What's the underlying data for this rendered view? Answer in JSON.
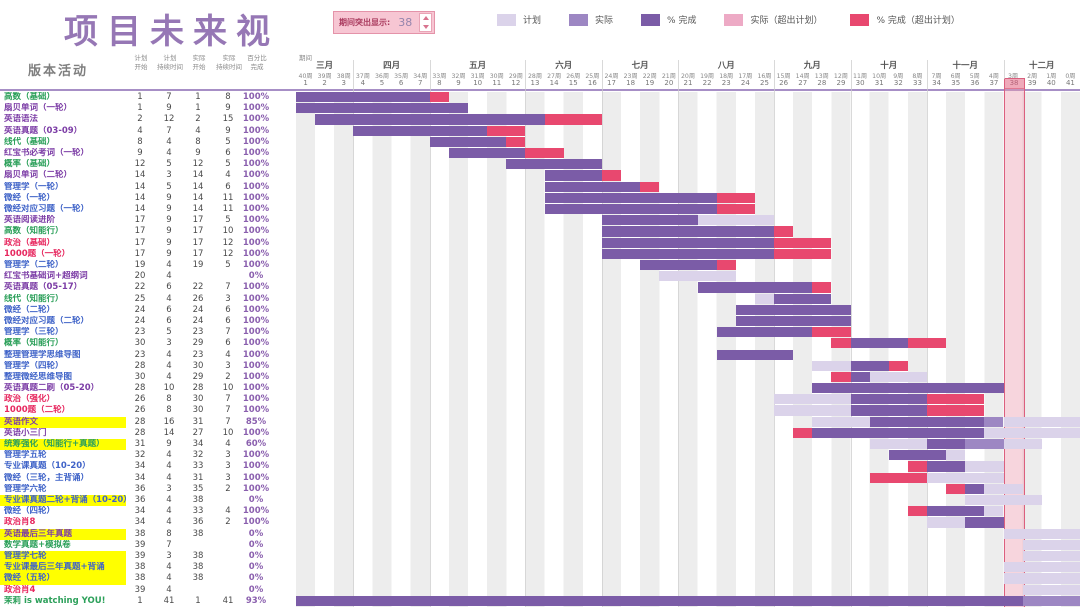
{
  "title": "项目未来视",
  "controls": {
    "highlight_label": "期间突出显示:",
    "highlight_value": "38"
  },
  "legend": [
    {
      "label": "计划",
      "type": "plan"
    },
    {
      "label": "实际",
      "type": "actual"
    },
    {
      "label": "% 完成",
      "type": "complete"
    },
    {
      "label": "实际（超出计划）",
      "type": "overActual"
    },
    {
      "label": "% 完成（超出计划）",
      "type": "overComplete"
    }
  ],
  "table": {
    "activity_header": "版本活动",
    "period_label": "期间",
    "col_headers": [
      [
        "计划",
        "开始"
      ],
      [
        "计划",
        "持续时间"
      ],
      [
        "实际",
        "开始"
      ],
      [
        "实际",
        "持续时间"
      ],
      [
        "百分比",
        "完成"
      ]
    ]
  },
  "timeline": {
    "months": [
      [
        "三月",
        3
      ],
      [
        "四月",
        4
      ],
      [
        "五月",
        5
      ],
      [
        "六月",
        4
      ],
      [
        "七月",
        4
      ],
      [
        "八月",
        5
      ],
      [
        "九月",
        4
      ],
      [
        "十月",
        4
      ],
      [
        "十一月",
        4
      ],
      [
        "十二月",
        4
      ]
    ],
    "week_labels": [
      "40周",
      "39周",
      "38周",
      "37周",
      "36周",
      "35周",
      "34周",
      "33周",
      "32周",
      "31周",
      "30周",
      "29周",
      "28周",
      "27周",
      "26周",
      "25周",
      "24周",
      "23周",
      "22周",
      "21周",
      "20周",
      "19周",
      "18周",
      "17周",
      "16周",
      "15周",
      "14周",
      "13周",
      "12周",
      "11周",
      "10周",
      "9周",
      "8周",
      "7周",
      "6周",
      "5周",
      "4周",
      "3周",
      "2周",
      "1周",
      "0周"
    ],
    "week_numbers": [
      1,
      2,
      3,
      4,
      5,
      6,
      7,
      8,
      9,
      10,
      11,
      12,
      13,
      14,
      15,
      16,
      17,
      18,
      19,
      20,
      21,
      22,
      23,
      24,
      25,
      26,
      27,
      28,
      29,
      30,
      31,
      32,
      33,
      34,
      35,
      36,
      37,
      38,
      39,
      40,
      41
    ],
    "highlight_week": 38,
    "total_weeks": 41
  },
  "colors": {
    "green": "#2ca05a",
    "purple": "#7c3da6",
    "blue": "#3f63c8",
    "red": "#e7285f",
    "plan": "#dbd3ea",
    "actual": "#9d87c3",
    "complete": "#7b5ca7",
    "overActual": "#edaac5",
    "overComplete": "#e8486f",
    "title": "#9677b5",
    "highlight_fill": "#f2b3c3",
    "highlight_border": "#dc5f7e"
  },
  "rows": [
    {
      "name": "高数（基础）",
      "color": "green",
      "highlight": false,
      "plan_start": "1",
      "plan_dur": "7",
      "actual_start": "1",
      "actual_dur": "8",
      "pct": "100%"
    },
    {
      "name": "扇贝单词（一轮）",
      "color": "purple",
      "highlight": false,
      "plan_start": "1",
      "plan_dur": "9",
      "actual_start": "1",
      "actual_dur": "9",
      "pct": "100%"
    },
    {
      "name": "英语语法",
      "color": "purple",
      "highlight": false,
      "plan_start": "2",
      "plan_dur": "12",
      "actual_start": "2",
      "actual_dur": "15",
      "pct": "100%"
    },
    {
      "name": "英语真题（03-09）",
      "color": "purple",
      "highlight": false,
      "plan_start": "4",
      "plan_dur": "7",
      "actual_start": "4",
      "actual_dur": "9",
      "pct": "100%"
    },
    {
      "name": "线代（基础）",
      "color": "green",
      "highlight": false,
      "plan_start": "8",
      "plan_dur": "4",
      "actual_start": "8",
      "actual_dur": "5",
      "pct": "100%"
    },
    {
      "name": "红宝书必考词（一轮）",
      "color": "purple",
      "highlight": false,
      "plan_start": "9",
      "plan_dur": "4",
      "actual_start": "9",
      "actual_dur": "6",
      "pct": "100%"
    },
    {
      "name": "概率（基础）",
      "color": "green",
      "highlight": false,
      "plan_start": "12",
      "plan_dur": "5",
      "actual_start": "12",
      "actual_dur": "5",
      "pct": "100%"
    },
    {
      "name": "扇贝单词（二轮）",
      "color": "purple",
      "highlight": false,
      "plan_start": "14",
      "plan_dur": "3",
      "actual_start": "14",
      "actual_dur": "4",
      "pct": "100%"
    },
    {
      "name": "管理学（一轮）",
      "color": "blue",
      "highlight": false,
      "plan_start": "14",
      "plan_dur": "5",
      "actual_start": "14",
      "actual_dur": "6",
      "pct": "100%"
    },
    {
      "name": "微经（一轮）",
      "color": "blue",
      "highlight": false,
      "plan_start": "14",
      "plan_dur": "9",
      "actual_start": "14",
      "actual_dur": "11",
      "pct": "100%"
    },
    {
      "name": "微经对应习题（一轮）",
      "color": "blue",
      "highlight": false,
      "plan_start": "14",
      "plan_dur": "9",
      "actual_start": "14",
      "actual_dur": "11",
      "pct": "100%"
    },
    {
      "name": "英语阅读进阶",
      "color": "purple",
      "highlight": false,
      "plan_start": "17",
      "plan_dur": "9",
      "actual_start": "17",
      "actual_dur": "5",
      "pct": "100%"
    },
    {
      "name": "高数（知能行）",
      "color": "green",
      "highlight": false,
      "plan_start": "17",
      "plan_dur": "9",
      "actual_start": "17",
      "actual_dur": "10",
      "pct": "100%"
    },
    {
      "name": "政治（基础）",
      "color": "red",
      "highlight": false,
      "plan_start": "17",
      "plan_dur": "9",
      "actual_start": "17",
      "actual_dur": "12",
      "pct": "100%"
    },
    {
      "name": "1000题（一轮）",
      "color": "red",
      "highlight": false,
      "plan_start": "17",
      "plan_dur": "9",
      "actual_start": "17",
      "actual_dur": "12",
      "pct": "100%"
    },
    {
      "name": "管理学（二轮）",
      "color": "blue",
      "highlight": false,
      "plan_start": "19",
      "plan_dur": "4",
      "actual_start": "19",
      "actual_dur": "5",
      "pct": "100%"
    },
    {
      "name": "红宝书基础词+超纲词",
      "color": "purple",
      "highlight": false,
      "plan_start": "20",
      "plan_dur": "4",
      "actual_start": "",
      "actual_dur": "",
      "pct": "0%"
    },
    {
      "name": "英语真题（05-17）",
      "color": "purple",
      "highlight": false,
      "plan_start": "22",
      "plan_dur": "6",
      "actual_start": "22",
      "actual_dur": "7",
      "pct": "100%"
    },
    {
      "name": "线代（知能行）",
      "color": "green",
      "highlight": false,
      "plan_start": "25",
      "plan_dur": "4",
      "actual_start": "26",
      "actual_dur": "3",
      "pct": "100%"
    },
    {
      "name": "微经（二轮）",
      "color": "blue",
      "highlight": false,
      "plan_start": "24",
      "plan_dur": "6",
      "actual_start": "24",
      "actual_dur": "6",
      "pct": "100%"
    },
    {
      "name": "微经对应习题（二轮）",
      "color": "blue",
      "highlight": false,
      "plan_start": "24",
      "plan_dur": "6",
      "actual_start": "24",
      "actual_dur": "6",
      "pct": "100%"
    },
    {
      "name": "管理学（三轮）",
      "color": "blue",
      "highlight": false,
      "plan_start": "23",
      "plan_dur": "5",
      "actual_start": "23",
      "actual_dur": "7",
      "pct": "100%"
    },
    {
      "name": "概率（知能行）",
      "color": "green",
      "highlight": false,
      "plan_start": "30",
      "plan_dur": "3",
      "actual_start": "29",
      "actual_dur": "6",
      "pct": "100%"
    },
    {
      "name": "整理管理学思维导图",
      "color": "blue",
      "highlight": false,
      "plan_start": "23",
      "plan_dur": "4",
      "actual_start": "23",
      "actual_dur": "4",
      "pct": "100%"
    },
    {
      "name": "管理学（四轮）",
      "color": "blue",
      "highlight": false,
      "plan_start": "28",
      "plan_dur": "4",
      "actual_start": "30",
      "actual_dur": "3",
      "pct": "100%"
    },
    {
      "name": "整理微经思维导图",
      "color": "blue",
      "highlight": false,
      "plan_start": "30",
      "plan_dur": "4",
      "actual_start": "29",
      "actual_dur": "2",
      "pct": "100%"
    },
    {
      "name": "英语真题二刷（05-20）",
      "color": "purple",
      "highlight": false,
      "plan_start": "28",
      "plan_dur": "10",
      "actual_start": "28",
      "actual_dur": "10",
      "pct": "100%"
    },
    {
      "name": "政治（强化）",
      "color": "red",
      "highlight": false,
      "plan_start": "26",
      "plan_dur": "8",
      "actual_start": "30",
      "actual_dur": "7",
      "pct": "100%"
    },
    {
      "name": "1000题（二轮）",
      "color": "red",
      "highlight": false,
      "plan_start": "26",
      "plan_dur": "8",
      "actual_start": "30",
      "actual_dur": "7",
      "pct": "100%"
    },
    {
      "name": "英语作文",
      "color": "purple",
      "highlight": true,
      "plan_start": "28",
      "plan_dur": "16",
      "actual_start": "31",
      "actual_dur": "7",
      "pct": "85%"
    },
    {
      "name": "英语小三门",
      "color": "purple",
      "highlight": false,
      "plan_start": "28",
      "plan_dur": "14",
      "actual_start": "27",
      "actual_dur": "10",
      "pct": "100%"
    },
    {
      "name": "统筹强化（知能行+真题）",
      "color": "green",
      "highlight": true,
      "plan_start": "31",
      "plan_dur": "9",
      "actual_start": "34",
      "actual_dur": "4",
      "pct": "60%"
    },
    {
      "name": "管理学五轮",
      "color": "blue",
      "highlight": false,
      "plan_start": "32",
      "plan_dur": "4",
      "actual_start": "32",
      "actual_dur": "3",
      "pct": "100%"
    },
    {
      "name": "专业课真题（10-20）",
      "color": "blue",
      "highlight": false,
      "plan_start": "34",
      "plan_dur": "4",
      "actual_start": "33",
      "actual_dur": "3",
      "pct": "100%"
    },
    {
      "name": "微经（三轮，主背诵）",
      "color": "blue",
      "highlight": false,
      "plan_start": "34",
      "plan_dur": "4",
      "actual_start": "31",
      "actual_dur": "3",
      "pct": "100%"
    },
    {
      "name": "管理学六轮",
      "color": "blue",
      "highlight": false,
      "plan_start": "36",
      "plan_dur": "3",
      "actual_start": "35",
      "actual_dur": "2",
      "pct": "100%"
    },
    {
      "name": "专业课真题二轮+背诵（10-20）",
      "color": "blue",
      "highlight": true,
      "plan_start": "36",
      "plan_dur": "4",
      "actual_start": "38",
      "actual_dur": "",
      "pct": "0%"
    },
    {
      "name": "微经（四轮）",
      "color": "blue",
      "highlight": false,
      "plan_start": "34",
      "plan_dur": "4",
      "actual_start": "33",
      "actual_dur": "4",
      "pct": "100%"
    },
    {
      "name": "政治肖8",
      "color": "red",
      "highlight": false,
      "plan_start": "34",
      "plan_dur": "4",
      "actual_start": "36",
      "actual_dur": "2",
      "pct": "100%"
    },
    {
      "name": "英语最后三年真题",
      "color": "purple",
      "highlight": true,
      "plan_start": "38",
      "plan_dur": "8",
      "actual_start": "38",
      "actual_dur": "",
      "pct": "0%"
    },
    {
      "name": "数学真题+模拟卷",
      "color": "green",
      "highlight": false,
      "plan_start": "39",
      "plan_dur": "7",
      "actual_start": "",
      "actual_dur": "",
      "pct": "0%"
    },
    {
      "name": "管理学七轮",
      "color": "blue",
      "highlight": true,
      "plan_start": "39",
      "plan_dur": "3",
      "actual_start": "38",
      "actual_dur": "",
      "pct": "0%"
    },
    {
      "name": "专业课最后三年真题+背诵",
      "color": "blue",
      "highlight": true,
      "plan_start": "38",
      "plan_dur": "4",
      "actual_start": "38",
      "actual_dur": "",
      "pct": "0%"
    },
    {
      "name": "微经（五轮）",
      "color": "blue",
      "highlight": true,
      "plan_start": "38",
      "plan_dur": "4",
      "actual_start": "38",
      "actual_dur": "",
      "pct": "0%"
    },
    {
      "name": "政治肖4",
      "color": "red",
      "highlight": false,
      "plan_start": "39",
      "plan_dur": "4",
      "actual_start": "",
      "actual_dur": "",
      "pct": "0%"
    },
    {
      "name": "茉莉 is watching YOU!",
      "color": "green",
      "highlight": false,
      "plan_start": "1",
      "plan_dur": "41",
      "actual_start": "1",
      "actual_dur": "41",
      "pct": "93%"
    }
  ]
}
